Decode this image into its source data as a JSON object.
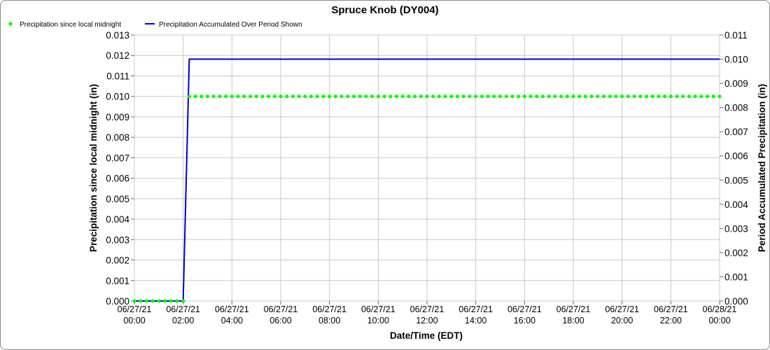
{
  "chart_data": {
    "type": "line",
    "title": "Spruce Knob (DY004)",
    "xlabel": "Date/Time (EDT)",
    "ylabel": "Precipitation since local midnight (in)",
    "y2label": "Period Accumulated Precipitation (in)",
    "x_ticks": [
      {
        "date": "06/27/21",
        "time": "00:00",
        "hours": 0
      },
      {
        "date": "06/27/21",
        "time": "02:00",
        "hours": 2
      },
      {
        "date": "06/27/21",
        "time": "04:00",
        "hours": 4
      },
      {
        "date": "06/27/21",
        "time": "06:00",
        "hours": 6
      },
      {
        "date": "06/27/21",
        "time": "08:00",
        "hours": 8
      },
      {
        "date": "06/27/21",
        "time": "10:00",
        "hours": 10
      },
      {
        "date": "06/27/21",
        "time": "12:00",
        "hours": 12
      },
      {
        "date": "06/27/21",
        "time": "14:00",
        "hours": 14
      },
      {
        "date": "06/27/21",
        "time": "16:00",
        "hours": 16
      },
      {
        "date": "06/27/21",
        "time": "18:00",
        "hours": 18
      },
      {
        "date": "06/27/21",
        "time": "20:00",
        "hours": 20
      },
      {
        "date": "06/27/21",
        "time": "22:00",
        "hours": 22
      },
      {
        "date": "06/28/21",
        "time": "00:00",
        "hours": 24
      }
    ],
    "xlim": [
      0,
      24
    ],
    "ylim": [
      0,
      0.013
    ],
    "y_ticks": [
      "0.000",
      "0.001",
      "0.002",
      "0.003",
      "0.004",
      "0.005",
      "0.006",
      "0.007",
      "0.008",
      "0.009",
      "0.010",
      "0.011",
      "0.012",
      "0.013"
    ],
    "y2lim": [
      0,
      0.011
    ],
    "y2_ticks": [
      "0.000",
      "0.001",
      "0.002",
      "0.003",
      "0.004",
      "0.005",
      "0.006",
      "0.007",
      "0.008",
      "0.009",
      "0.010",
      "0.011"
    ],
    "grid": true,
    "legend_position": "top-left",
    "series": [
      {
        "name": "Precipitation since local midnight",
        "axis": "left",
        "style": "dots",
        "color": "#00ff00",
        "step_hours": 0.25,
        "points": [
          [
            0,
            0.0
          ],
          [
            2.0,
            0.0
          ],
          [
            2.25,
            0.01
          ],
          [
            24.0,
            0.01
          ]
        ]
      },
      {
        "name": "Precipitation Accumulated Over Period Shown",
        "axis": "right",
        "style": "line",
        "color": "#0000cc",
        "points": [
          [
            0,
            0.0
          ],
          [
            2.0,
            0.0
          ],
          [
            2.25,
            0.01
          ],
          [
            24.0,
            0.01
          ]
        ]
      }
    ]
  }
}
